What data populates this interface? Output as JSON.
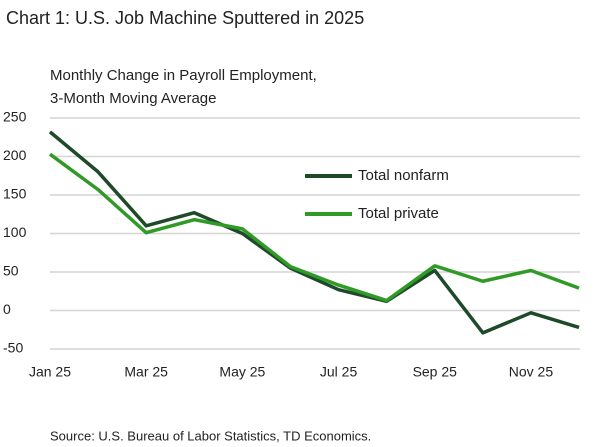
{
  "chart_data": {
    "type": "line",
    "title": "Chart 1: U.S. Job Machine Sputtered in 2025",
    "subtitle": [
      "Monthly Change in Payroll Employment,",
      "3-Month Moving Average"
    ],
    "source": "Source: U.S. Bureau of Labor Statistics, TD Economics.",
    "categories": [
      "Jan 25",
      null,
      "Mar 25",
      null,
      "May 25",
      null,
      "Jul 25",
      null,
      "Sep 25",
      null,
      "Nov 25",
      null
    ],
    "series": [
      {
        "name": "Total nonfarm",
        "color": "#1f4a2a",
        "values": [
          232,
          180,
          110,
          127,
          100,
          55,
          27,
          12,
          52,
          -29,
          -3,
          -22
        ]
      },
      {
        "name": "Total private",
        "color": "#2f9a26",
        "values": [
          203,
          157,
          101,
          118,
          106,
          57,
          33,
          13,
          58,
          38,
          52,
          29
        ]
      }
    ],
    "ylim": [
      -50,
      250
    ],
    "yticks": [
      -50,
      0,
      50,
      100,
      150,
      200,
      250
    ],
    "grid": true
  }
}
